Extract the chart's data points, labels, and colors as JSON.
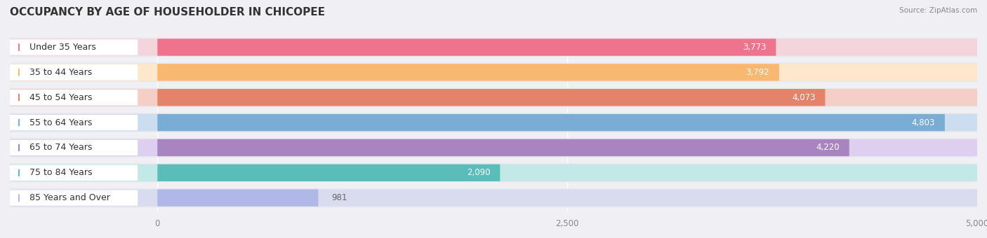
{
  "title": "OCCUPANCY BY AGE OF HOUSEHOLDER IN CHICOPEE",
  "source": "Source: ZipAtlas.com",
  "categories": [
    "Under 35 Years",
    "35 to 44 Years",
    "45 to 54 Years",
    "55 to 64 Years",
    "65 to 74 Years",
    "75 to 84 Years",
    "85 Years and Over"
  ],
  "values": [
    3773,
    3792,
    4073,
    4803,
    4220,
    2090,
    981
  ],
  "bar_colors": [
    "#F0738E",
    "#F9B870",
    "#E5836A",
    "#7AADD6",
    "#A884C0",
    "#5BBDBA",
    "#B0B8E8"
  ],
  "bar_bg_colors": [
    "#F5D5DC",
    "#FDE8CC",
    "#F5CEC8",
    "#CCDDF0",
    "#DDD0EE",
    "#C2E8E8",
    "#D8DCEE"
  ],
  "outer_bg_color": "#E8E8EC",
  "xlim": [
    0,
    5000
  ],
  "xticks": [
    0,
    2500,
    5000
  ],
  "title_fontsize": 11,
  "label_fontsize": 9,
  "value_fontsize": 8.5,
  "background_color": "#f0f0f4"
}
